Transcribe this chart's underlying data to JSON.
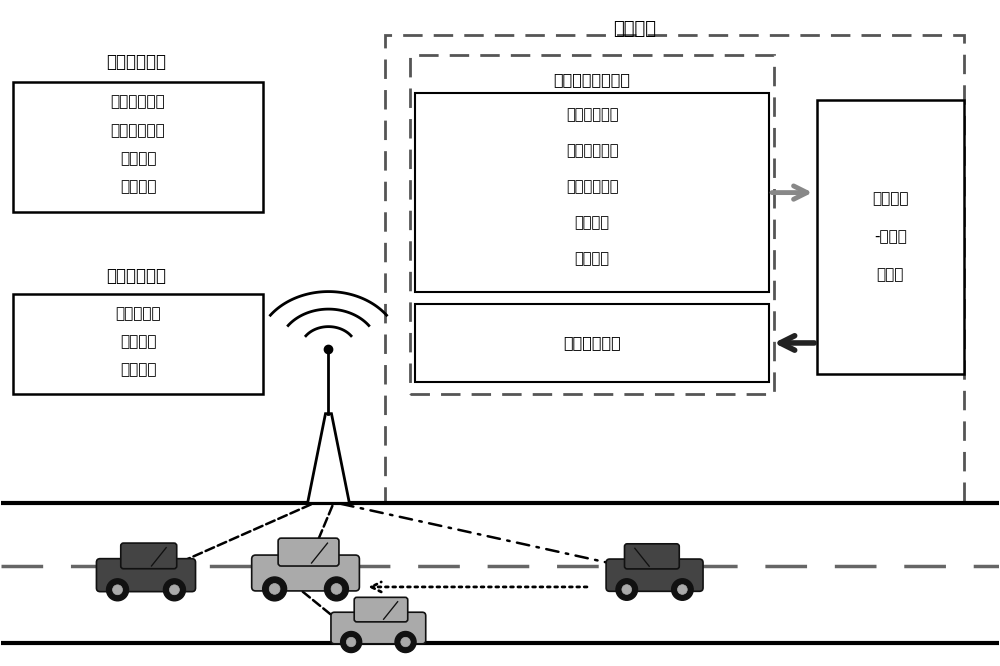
{
  "title": "路旁系统",
  "bg_color": "#ffffff",
  "left_label1": "请求服务车辆",
  "left_label2": "提供服务车辆",
  "box_request_lines": [
    "子任务间关系",
    "任务效用函数",
    "位置信息",
    "速度信息"
  ],
  "box_provide_lines": [
    "计算资源量",
    "位置信息",
    "速度信息"
  ],
  "box_collect_title": "车辆数据收集模块",
  "box_collect_lines": [
    "车辆任务关系",
    "任务延迟函数",
    "资源容量信息",
    "位置信息",
    "速度信息"
  ],
  "box_broadcast": "匹配结果广播",
  "box_decision_lines": [
    "任务时序",
    "-车辆匹",
    "配决策"
  ],
  "gray_arrow_color": "#888888",
  "black_arrow_color": "#222222"
}
